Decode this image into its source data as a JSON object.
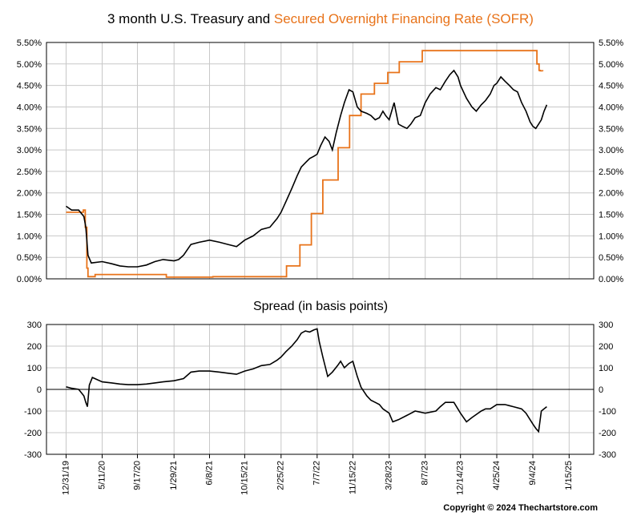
{
  "titles": {
    "top_part1": "3 month U.S. Treasury and ",
    "top_part2": "Secured Overnight Financing Rate (SOFR)",
    "bottom": "Spread (in basis points)"
  },
  "copyright": "Copyright © 2024 Thechartstore.com",
  "colors": {
    "treasury": "#000000",
    "sofr": "#e8731a",
    "grid": "#c8c8c8"
  },
  "chart_data": [
    {
      "type": "line",
      "title": "3 month U.S. Treasury and Secured Overnight Financing Rate (SOFR)",
      "x_tick_labels": [
        "12/31/19",
        "5/11/20",
        "9/17/20",
        "1/29/21",
        "6/8/21",
        "10/15/21",
        "2/25/22",
        "7/7/22",
        "11/15/22",
        "3/28/23",
        "8/7/23",
        "12/14/23",
        "4/25/24",
        "9/4/24",
        "1/15/25"
      ],
      "x_ticks": [
        "2019-12-31",
        "2020-05-11",
        "2020-09-17",
        "2021-01-29",
        "2021-06-08",
        "2021-10-15",
        "2022-02-25",
        "2022-07-07",
        "2022-11-15",
        "2023-03-28",
        "2023-08-07",
        "2023-12-14",
        "2024-04-25",
        "2024-09-04",
        "2025-01-15"
      ],
      "xlim": [
        "2019-10-20",
        "2025-04-15"
      ],
      "ylim": [
        0,
        5.5
      ],
      "y_tick_labels": [
        "0.00%",
        "0.50%",
        "1.00%",
        "1.50%",
        "2.00%",
        "2.50%",
        "3.00%",
        "3.50%",
        "4.00%",
        "4.50%",
        "5.00%",
        "5.50%"
      ],
      "grid": true,
      "series": [
        {
          "name": "3 month U.S. Treasury",
          "x": [
            "2019-12-31",
            "2020-01-20",
            "2020-02-15",
            "2020-03-05",
            "2020-03-12",
            "2020-03-20",
            "2020-04-01",
            "2020-05-11",
            "2020-06-15",
            "2020-07-15",
            "2020-08-15",
            "2020-09-17",
            "2020-10-20",
            "2020-11-20",
            "2020-12-20",
            "2021-01-29",
            "2021-02-15",
            "2021-03-05",
            "2021-04-01",
            "2021-05-01",
            "2021-06-08",
            "2021-07-15",
            "2021-08-15",
            "2021-09-15",
            "2021-10-15",
            "2021-11-15",
            "2021-12-15",
            "2022-01-15",
            "2022-02-10",
            "2022-02-25",
            "2022-03-15",
            "2022-04-05",
            "2022-04-25",
            "2022-05-10",
            "2022-05-25",
            "2022-06-10",
            "2022-06-25",
            "2022-07-07",
            "2022-07-20",
            "2022-08-05",
            "2022-08-20",
            "2022-09-01",
            "2022-09-15",
            "2022-10-01",
            "2022-10-15",
            "2022-11-01",
            "2022-11-15",
            "2022-12-01",
            "2022-12-15",
            "2023-01-05",
            "2023-01-20",
            "2023-02-05",
            "2023-02-20",
            "2023-03-05",
            "2023-03-15",
            "2023-03-28",
            "2023-04-15",
            "2023-05-01",
            "2023-05-15",
            "2023-06-01",
            "2023-06-15",
            "2023-07-01",
            "2023-07-20",
            "2023-08-07",
            "2023-08-25",
            "2023-09-15",
            "2023-10-01",
            "2023-10-20",
            "2023-11-05",
            "2023-11-20",
            "2023-12-05",
            "2023-12-14",
            "2024-01-05",
            "2024-01-25",
            "2024-02-10",
            "2024-02-28",
            "2024-03-15",
            "2024-04-01",
            "2024-04-15",
            "2024-04-25",
            "2024-05-10",
            "2024-05-25",
            "2024-06-10",
            "2024-06-25",
            "2024-07-10",
            "2024-07-25",
            "2024-08-10",
            "2024-08-25",
            "2024-09-04",
            "2024-09-15",
            "2024-09-25",
            "2024-10-05",
            "2024-10-15",
            "2024-10-25"
          ],
          "y": [
            1.69,
            1.6,
            1.6,
            1.45,
            1.2,
            0.55,
            0.37,
            0.4,
            0.35,
            0.3,
            0.28,
            0.28,
            0.32,
            0.4,
            0.45,
            0.42,
            0.45,
            0.55,
            0.8,
            0.85,
            0.9,
            0.85,
            0.8,
            0.75,
            0.9,
            1.0,
            1.15,
            1.2,
            1.4,
            1.55,
            1.8,
            2.1,
            2.4,
            2.6,
            2.7,
            2.8,
            2.85,
            2.9,
            3.1,
            3.3,
            3.2,
            3.0,
            3.4,
            3.8,
            4.1,
            4.4,
            4.35,
            4.0,
            3.9,
            3.85,
            3.8,
            3.7,
            3.75,
            3.9,
            3.8,
            3.7,
            4.1,
            3.6,
            3.55,
            3.5,
            3.6,
            3.75,
            3.8,
            4.1,
            4.3,
            4.45,
            4.4,
            4.6,
            4.75,
            4.85,
            4.7,
            4.5,
            4.2,
            4.0,
            3.9,
            4.05,
            4.15,
            4.3,
            4.5,
            4.55,
            4.7,
            4.6,
            4.5,
            4.4,
            4.35,
            4.1,
            3.9,
            3.65,
            3.55,
            3.5,
            3.6,
            3.7,
            3.9,
            4.05
          ]
        },
        {
          "name": "Secured Overnight Financing Rate (SOFR)",
          "steps": true,
          "x": [
            "2019-12-31",
            "2020-03-03",
            "2020-03-10",
            "2020-03-16",
            "2020-03-20",
            "2020-04-15",
            "2020-07-01",
            "2021-01-01",
            "2021-06-20",
            "2022-03-17",
            "2022-05-05",
            "2022-06-16",
            "2022-07-28",
            "2022-09-22",
            "2022-11-03",
            "2022-12-15",
            "2023-02-02",
            "2023-03-23",
            "2023-05-04",
            "2023-07-27",
            "2024-09-19",
            "2024-09-27",
            "2024-10-01",
            "2024-10-10"
          ],
          "y": [
            1.55,
            1.6,
            1.2,
            0.25,
            0.05,
            0.1,
            0.1,
            0.04,
            0.05,
            0.3,
            0.79,
            1.52,
            2.3,
            3.05,
            3.8,
            4.3,
            4.55,
            4.8,
            5.05,
            5.31,
            5.0,
            4.85,
            4.84,
            4.83
          ]
        }
      ]
    },
    {
      "type": "line",
      "title": "Spread (in basis points)",
      "xlim": [
        "2019-10-20",
        "2025-04-15"
      ],
      "ylim": [
        -300,
        300
      ],
      "y_tick_labels": [
        "300",
        "200",
        "100",
        "0",
        "-100",
        "-200",
        "-300"
      ],
      "grid": true,
      "series": [
        {
          "name": "Spread",
          "x": [
            "2019-12-31",
            "2020-01-20",
            "2020-02-15",
            "2020-03-05",
            "2020-03-12",
            "2020-03-18",
            "2020-03-25",
            "2020-04-05",
            "2020-05-11",
            "2020-06-15",
            "2020-07-15",
            "2020-08-15",
            "2020-09-17",
            "2020-10-20",
            "2020-11-20",
            "2020-12-20",
            "2021-01-29",
            "2021-03-05",
            "2021-04-01",
            "2021-05-01",
            "2021-06-08",
            "2021-07-15",
            "2021-08-15",
            "2021-09-15",
            "2021-10-15",
            "2021-11-15",
            "2021-12-15",
            "2022-01-15",
            "2022-02-10",
            "2022-02-25",
            "2022-03-15",
            "2022-04-05",
            "2022-04-25",
            "2022-05-10",
            "2022-05-25",
            "2022-06-10",
            "2022-06-25",
            "2022-07-07",
            "2022-07-15",
            "2022-07-28",
            "2022-08-15",
            "2022-09-01",
            "2022-09-20",
            "2022-10-01",
            "2022-10-15",
            "2022-11-01",
            "2022-11-15",
            "2022-12-01",
            "2022-12-15",
            "2023-01-05",
            "2023-01-20",
            "2023-02-05",
            "2023-02-20",
            "2023-03-05",
            "2023-03-28",
            "2023-04-10",
            "2023-05-01",
            "2023-06-01",
            "2023-07-01",
            "2023-08-07",
            "2023-09-15",
            "2023-10-01",
            "2023-10-20",
            "2023-11-20",
            "2023-12-14",
            "2024-01-05",
            "2024-01-25",
            "2024-02-28",
            "2024-03-15",
            "2024-04-01",
            "2024-04-25",
            "2024-05-25",
            "2024-06-25",
            "2024-07-25",
            "2024-08-10",
            "2024-08-25",
            "2024-09-04",
            "2024-09-15",
            "2024-09-25",
            "2024-10-05",
            "2024-10-15",
            "2024-10-25"
          ],
          "y": [
            12,
            5,
            0,
            -30,
            -60,
            -80,
            20,
            55,
            35,
            30,
            25,
            22,
            22,
            25,
            30,
            35,
            40,
            50,
            80,
            85,
            85,
            80,
            75,
            70,
            85,
            95,
            110,
            115,
            135,
            150,
            175,
            200,
            230,
            260,
            270,
            265,
            275,
            280,
            220,
            150,
            60,
            80,
            110,
            130,
            100,
            120,
            130,
            60,
            10,
            -30,
            -50,
            -60,
            -70,
            -90,
            -110,
            -150,
            -140,
            -120,
            -100,
            -110,
            -100,
            -80,
            -60,
            -60,
            -110,
            -150,
            -130,
            -100,
            -90,
            -90,
            -70,
            -70,
            -80,
            -90,
            -110,
            -140,
            -160,
            -180,
            -195,
            -100,
            -90,
            -80
          ]
        }
      ]
    }
  ]
}
